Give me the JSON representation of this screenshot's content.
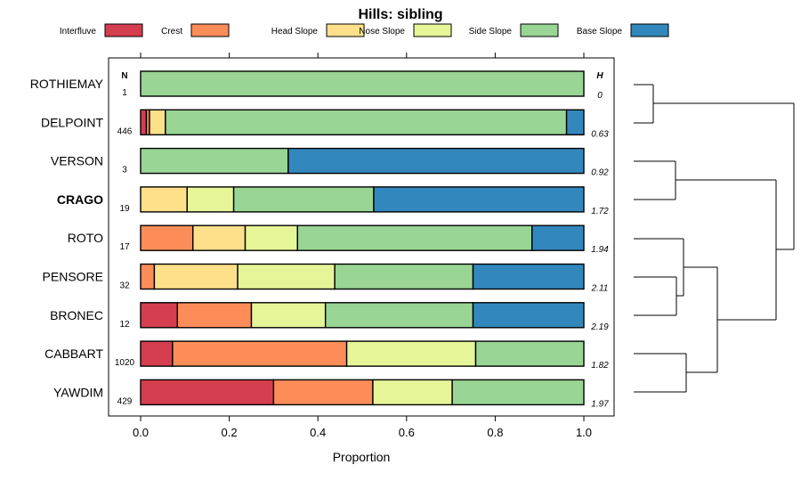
{
  "chart_data": {
    "type": "bar",
    "orientation": "horizontal",
    "stacked": true,
    "title": "Hills: sibling",
    "xlabel": "Proportion",
    "ylabel": "",
    "xlim": [
      0,
      1
    ],
    "xticks": [
      "0.0",
      "0.2",
      "0.4",
      "0.6",
      "0.8",
      "1.0"
    ],
    "n_header": "N",
    "h_header": "H",
    "legend": [
      {
        "name": "Interfluve",
        "color": "#d53e4f"
      },
      {
        "name": "Crest",
        "color": "#fc8d59"
      },
      {
        "name": "Head Slope",
        "color": "#fee08b"
      },
      {
        "name": "Nose Slope",
        "color": "#e6f598"
      },
      {
        "name": "Side Slope",
        "color": "#99d594"
      },
      {
        "name": "Base Slope",
        "color": "#3288bd"
      }
    ],
    "categories": [
      {
        "label": "ROTHIEMAY",
        "n": "1",
        "h": "0",
        "bold": false,
        "values": [
          0,
          0,
          0,
          0,
          1.0,
          0
        ]
      },
      {
        "label": "DELPOINT",
        "n": "446",
        "h": "0.63",
        "bold": false,
        "values": [
          0.013,
          0.007,
          0.036,
          0,
          0.905,
          0.039
        ]
      },
      {
        "label": "VERSON",
        "n": "3",
        "h": "0.92",
        "bold": false,
        "values": [
          0,
          0,
          0,
          0,
          0.333,
          0.667
        ]
      },
      {
        "label": "CRAGO",
        "n": "19",
        "h": "1.72",
        "bold": true,
        "values": [
          0,
          0,
          0.105,
          0.105,
          0.316,
          0.474
        ]
      },
      {
        "label": "ROTO",
        "n": "17",
        "h": "1.94",
        "bold": false,
        "values": [
          0,
          0.118,
          0.118,
          0.118,
          0.529,
          0.117
        ]
      },
      {
        "label": "PENSORE",
        "n": "32",
        "h": "2.11",
        "bold": false,
        "values": [
          0,
          0.031,
          0.188,
          0.219,
          0.312,
          0.25
        ]
      },
      {
        "label": "BRONEC",
        "n": "12",
        "h": "2.19",
        "bold": false,
        "values": [
          0.083,
          0.167,
          0.0,
          0.167,
          0.333,
          0.25
        ]
      },
      {
        "label": "CABBART",
        "n": "1020",
        "h": "1.82",
        "bold": false,
        "values": [
          0.072,
          0.393,
          0,
          0.291,
          0.244,
          0
        ]
      },
      {
        "label": "YAWDIM",
        "n": "429",
        "h": "1.97",
        "bold": false,
        "values": [
          0.3,
          0.224,
          0,
          0.179,
          0.297,
          0
        ]
      }
    ],
    "dendrogram": "hierarchical clustering of the nine series shown at right (structure only, no labels)"
  }
}
